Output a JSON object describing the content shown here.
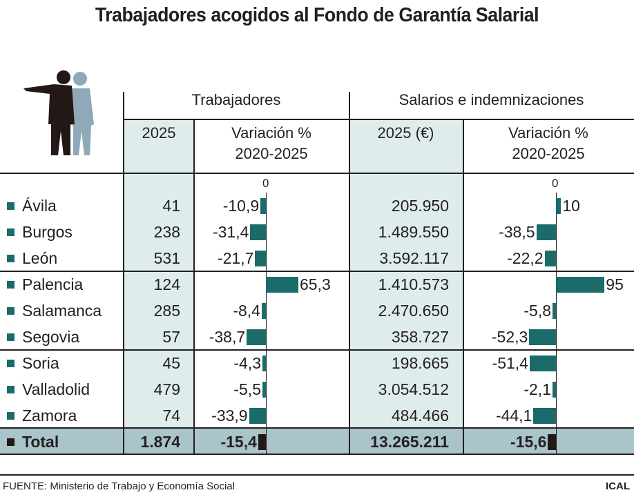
{
  "title": "Trabajadores acogidos al Fondo de Garantía Salarial",
  "headers": {
    "group1": "Trabajadores",
    "group2": "Salarios e indemnizaciones",
    "col_2025": "2025",
    "col_var_line1": "Variación %",
    "col_var_line2": "2020-2025",
    "col_2025_eur": "2025 (€)",
    "zero": "0"
  },
  "colors": {
    "bar": "#1b6b6b",
    "total_bar": "#231815",
    "shade": "#dfecec",
    "total_bg": "#a9c4cb"
  },
  "chart_data": {
    "type": "table",
    "rows": [
      {
        "province": "Ávila",
        "workers": "41",
        "workers_var": "-10,9",
        "workers_var_value": -10.9,
        "salaries": "205.950",
        "salaries_var": "10",
        "salaries_var_value": 10
      },
      {
        "province": "Burgos",
        "workers": "238",
        "workers_var": "-31,4",
        "workers_var_value": -31.4,
        "salaries": "1.489.550",
        "salaries_var": "-38,5",
        "salaries_var_value": -38.5
      },
      {
        "province": "León",
        "workers": "531",
        "workers_var": "-21,7",
        "workers_var_value": -21.7,
        "salaries": "3.592.117",
        "salaries_var": "-22,2",
        "salaries_var_value": -22.2
      },
      {
        "province": "Palencia",
        "workers": "124",
        "workers_var": "65,3",
        "workers_var_value": 65.3,
        "salaries": "1.410.573",
        "salaries_var": "95",
        "salaries_var_value": 95
      },
      {
        "province": "Salamanca",
        "workers": "285",
        "workers_var": "-8,4",
        "workers_var_value": -8.4,
        "salaries": "2.470.650",
        "salaries_var": "-5,8",
        "salaries_var_value": -5.8
      },
      {
        "province": "Segovia",
        "workers": "57",
        "workers_var": "-38,7",
        "workers_var_value": -38.7,
        "salaries": "358.727",
        "salaries_var": "-52,3",
        "salaries_var_value": -52.3
      },
      {
        "province": "Soria",
        "workers": "45",
        "workers_var": "-4,3",
        "workers_var_value": -4.3,
        "salaries": "198.665",
        "salaries_var": "-51,4",
        "salaries_var_value": -51.4
      },
      {
        "province": "Valladolid",
        "workers": "479",
        "workers_var": "-5,5",
        "workers_var_value": -5.5,
        "salaries": "3.054.512",
        "salaries_var": "-2,1",
        "salaries_var_value": -2.1
      },
      {
        "province": "Zamora",
        "workers": "74",
        "workers_var": "-33,9",
        "workers_var_value": -33.9,
        "salaries": "484.466",
        "salaries_var": "-44,1",
        "salaries_var_value": -44.1
      }
    ],
    "total": {
      "province": "Total",
      "workers": "1.874",
      "workers_var": "-15,4",
      "workers_var_value": -15.4,
      "salaries": "13.265.211",
      "salaries_var": "-15,6",
      "salaries_var_value": -15.6
    }
  },
  "footer": {
    "source": "FUENTE: Ministerio de Trabajo y Economía Social",
    "brand": "ICAL"
  }
}
